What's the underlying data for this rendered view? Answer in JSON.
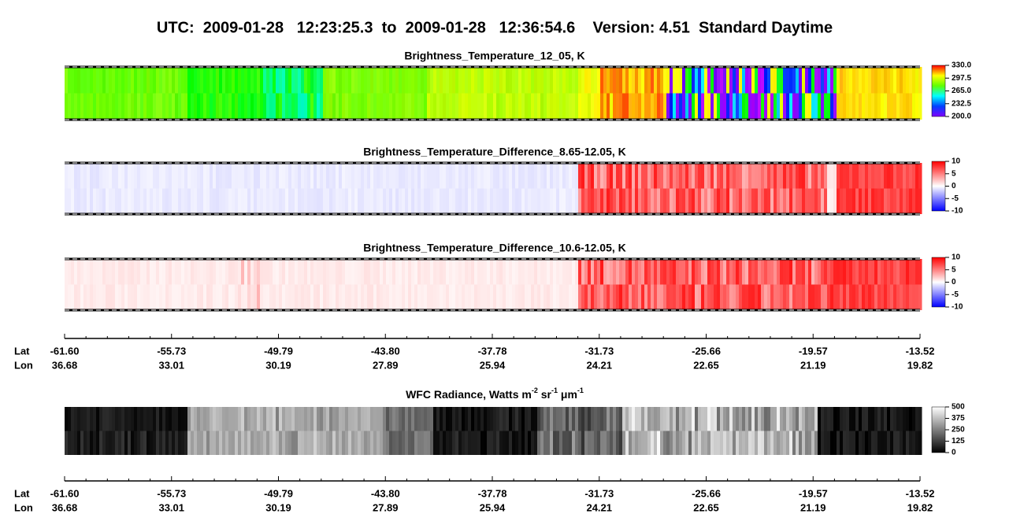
{
  "title": "UTC:  2009-01-28   12:23:25.3  to  2009-01-28   12:36:54.6    Version: 4.51  Standard Daytime",
  "panels": [
    {
      "title": "Brightness_Temperature_12_05, K",
      "colorbar": [
        "330.0",
        "297.5",
        "265.0",
        "232.5",
        "200.0"
      ]
    },
    {
      "title": "Brightness_Temperature_Difference_8.65-12.05, K",
      "colorbar": [
        "10",
        "5",
        "0",
        "-5",
        "-10"
      ]
    },
    {
      "title": "Brightness_Temperature_Difference_10.6-12.05, K",
      "colorbar": [
        "10",
        "5",
        "0",
        "-5",
        "-10"
      ]
    }
  ],
  "radiance": {
    "title": [
      "WFC Radiance, Watts m",
      "-2",
      " sr",
      "-1",
      " μm",
      "-1"
    ],
    "colorbar": [
      "500",
      "375",
      "250",
      "125",
      "0"
    ]
  },
  "axes": [
    {
      "lat_label": "Lat",
      "lon_label": "Lon",
      "lat": [
        "-61.60",
        "-55.73",
        "-49.79",
        "-43.80",
        "-37.78",
        "-31.73",
        "-25.66",
        "-19.57",
        "-13.52"
      ],
      "lon": [
        "36.68",
        "33.01",
        "30.19",
        "27.89",
        "25.94",
        "24.21",
        "22.65",
        "21.19",
        "19.82"
      ]
    },
    {
      "lat_label": "Lat",
      "lon_label": "Lon",
      "lat": [
        "-61.60",
        "-55.73",
        "-49.79",
        "-43.80",
        "-37.78",
        "-31.73",
        "-25.66",
        "-19.57",
        "-13.52"
      ],
      "lon": [
        "36.68",
        "33.01",
        "30.19",
        "27.89",
        "25.94",
        "24.21",
        "22.65",
        "21.19",
        "19.82"
      ]
    }
  ]
}
